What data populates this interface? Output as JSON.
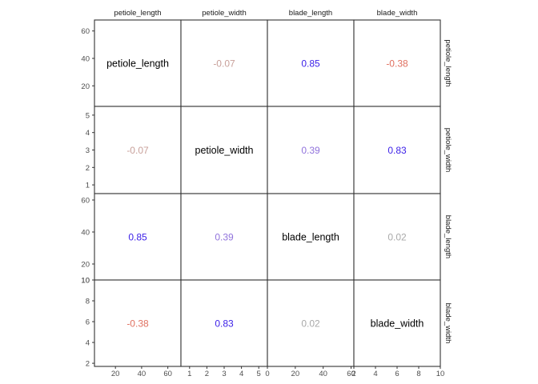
{
  "chart_data": {
    "type": "table",
    "variables": [
      "petiole_length",
      "petiole_width",
      "blade_length",
      "blade_width"
    ],
    "correlations": [
      [
        null,
        -0.07,
        0.85,
        -0.38
      ],
      [
        -0.07,
        null,
        0.39,
        0.83
      ],
      [
        0.85,
        0.39,
        null,
        0.02
      ],
      [
        -0.38,
        0.83,
        0.02,
        null
      ]
    ],
    "cell_labels": [
      [
        "petiole_length",
        "-0.07",
        "0.85",
        "-0.38"
      ],
      [
        "-0.07",
        "petiole_width",
        "0.39",
        "0.83"
      ],
      [
        "0.85",
        "0.39",
        "blade_length",
        "0.02"
      ],
      [
        "-0.38",
        "0.83",
        "0.02",
        "blade_width"
      ]
    ],
    "row_axes": [
      {
        "range": [
          5,
          68
        ],
        "ticks": [
          20,
          40,
          60
        ]
      },
      {
        "range": [
          0.5,
          5.5
        ],
        "ticks": [
          1,
          2,
          3,
          4,
          5
        ]
      },
      {
        "range": [
          10,
          64
        ],
        "ticks": [
          10,
          20,
          40,
          60
        ]
      },
      {
        "range": [
          1.7,
          10
        ],
        "ticks": [
          2,
          4,
          6,
          8,
          10
        ]
      }
    ],
    "col_axes": [
      {
        "range": [
          4,
          70
        ],
        "ticks": [
          20,
          40,
          60
        ]
      },
      {
        "range": [
          0.5,
          5.5
        ],
        "ticks": [
          1,
          2,
          3,
          4,
          5
        ]
      },
      {
        "range": [
          0,
          62
        ],
        "ticks": [
          0,
          20,
          40,
          60
        ]
      },
      {
        "range": [
          2,
          10
        ],
        "ticks": [
          2,
          4,
          6,
          8,
          10
        ]
      }
    ],
    "colors": {
      "strong_positive": "#3a1ee8",
      "moderate_positive": "#9173dc",
      "neutral": "#a9a9a9",
      "negative_small": "#c8a09a",
      "negative": "#e07060",
      "diagonal": "#000000"
    }
  }
}
